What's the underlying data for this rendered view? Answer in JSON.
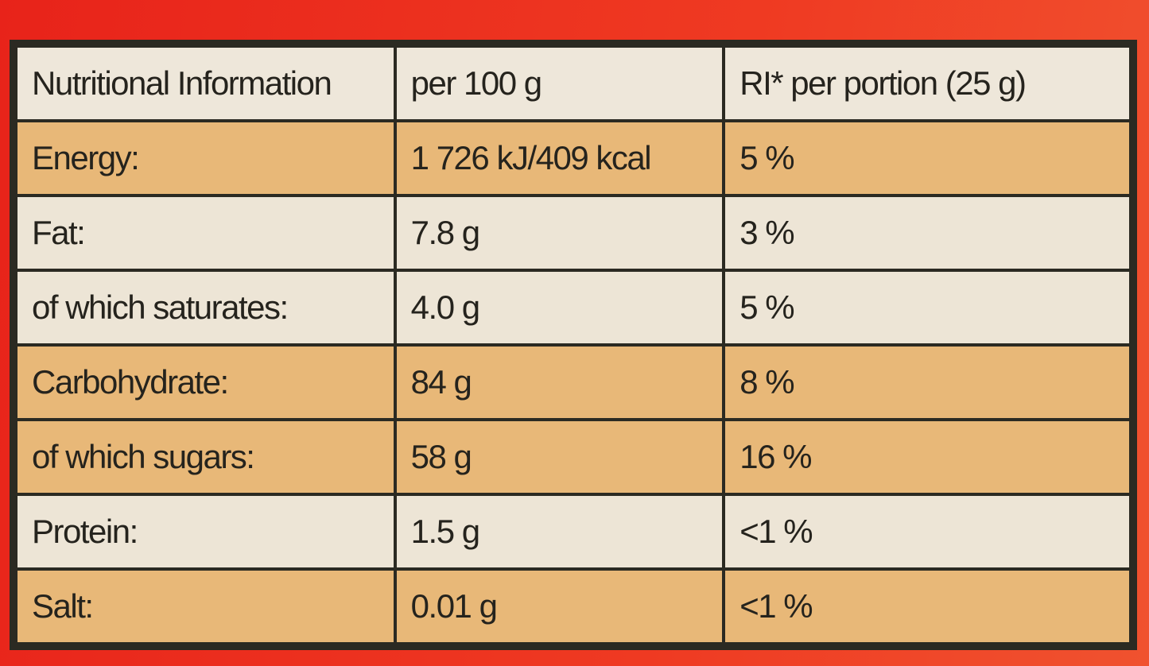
{
  "table": {
    "header": [
      "Nutritional Information",
      "per 100 g",
      "RI* per portion (25 g)"
    ],
    "rows": [
      [
        "Energy:",
        "1 726 kJ/409 kcal",
        "5 %"
      ],
      [
        "Fat:",
        "7.8 g",
        "3 %"
      ],
      [
        "of which saturates:",
        "4.0 g",
        "5 %"
      ],
      [
        "Carbohydrate:",
        "84 g",
        "8 %"
      ],
      [
        "of which sugars:",
        "58 g",
        "16 %"
      ],
      [
        "Protein:",
        "1.5 g",
        "<1 %"
      ],
      [
        "Salt:",
        "0.01 g",
        "<1 %"
      ]
    ]
  }
}
